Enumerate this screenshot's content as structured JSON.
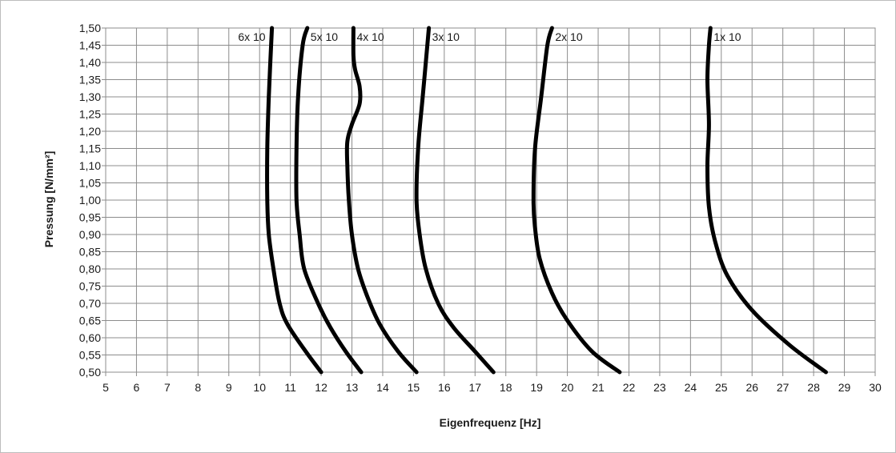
{
  "chart_data": {
    "type": "line",
    "title": "",
    "xlabel": "Eigenfrequenz [Hz]",
    "ylabel": "Pressung [N/mm²]",
    "xlim": [
      5,
      30
    ],
    "ylim": [
      0.5,
      1.5
    ],
    "grid": true,
    "legend": "none",
    "xticks": [
      "5",
      "6",
      "7",
      "8",
      "9",
      "10",
      "11",
      "12",
      "13",
      "14",
      "15",
      "16",
      "17",
      "18",
      "19",
      "20",
      "21",
      "22",
      "23",
      "24",
      "25",
      "26",
      "27",
      "28",
      "29",
      "30"
    ],
    "yticks": [
      "0,50",
      "0,55",
      "0,60",
      "0,65",
      "0,70",
      "0,75",
      "0,80",
      "0,85",
      "0,90",
      "0,95",
      "1,00",
      "1,05",
      "1,10",
      "1,15",
      "1,20",
      "1,25",
      "1,30",
      "1,35",
      "1,40",
      "1,45",
      "1,50"
    ],
    "line_color": "#000000",
    "grid_color": "#8c8c8c",
    "series": [
      {
        "name": "6x 10",
        "points": [
          [
            12.0,
            0.5
          ],
          [
            11.5,
            0.56
          ],
          [
            10.9,
            0.64
          ],
          [
            10.65,
            0.7
          ],
          [
            10.45,
            0.8
          ],
          [
            10.3,
            0.9
          ],
          [
            10.25,
            1.0
          ],
          [
            10.25,
            1.15
          ],
          [
            10.3,
            1.3
          ],
          [
            10.4,
            1.5
          ]
        ]
      },
      {
        "name": "5x 10",
        "points": [
          [
            13.3,
            0.5
          ],
          [
            12.8,
            0.56
          ],
          [
            12.3,
            0.63
          ],
          [
            11.9,
            0.7
          ],
          [
            11.45,
            0.8
          ],
          [
            11.3,
            0.9
          ],
          [
            11.2,
            1.0
          ],
          [
            11.2,
            1.15
          ],
          [
            11.25,
            1.3
          ],
          [
            11.4,
            1.45
          ],
          [
            11.55,
            1.5
          ]
        ]
      },
      {
        "name": "4x 10",
        "points": [
          [
            15.1,
            0.5
          ],
          [
            14.5,
            0.56
          ],
          [
            13.9,
            0.64
          ],
          [
            13.5,
            0.72
          ],
          [
            13.2,
            0.8
          ],
          [
            13.0,
            0.9
          ],
          [
            12.9,
            1.0
          ],
          [
            12.85,
            1.1
          ],
          [
            12.85,
            1.17
          ],
          [
            13.0,
            1.22
          ],
          [
            13.25,
            1.28
          ],
          [
            13.25,
            1.33
          ],
          [
            13.1,
            1.38
          ],
          [
            13.05,
            1.42
          ],
          [
            13.05,
            1.5
          ]
        ]
      },
      {
        "name": "3x 10",
        "points": [
          [
            17.6,
            0.5
          ],
          [
            17.0,
            0.56
          ],
          [
            16.3,
            0.63
          ],
          [
            15.8,
            0.7
          ],
          [
            15.4,
            0.8
          ],
          [
            15.2,
            0.9
          ],
          [
            15.1,
            1.0
          ],
          [
            15.15,
            1.15
          ],
          [
            15.3,
            1.3
          ],
          [
            15.45,
            1.45
          ],
          [
            15.5,
            1.5
          ]
        ]
      },
      {
        "name": "2x 10",
        "points": [
          [
            21.7,
            0.5
          ],
          [
            20.8,
            0.56
          ],
          [
            20.0,
            0.65
          ],
          [
            19.5,
            0.73
          ],
          [
            19.1,
            0.83
          ],
          [
            18.95,
            0.92
          ],
          [
            18.9,
            1.0
          ],
          [
            18.95,
            1.15
          ],
          [
            19.15,
            1.3
          ],
          [
            19.35,
            1.45
          ],
          [
            19.5,
            1.5
          ]
        ]
      },
      {
        "name": "1x 10",
        "points": [
          [
            28.4,
            0.5
          ],
          [
            27.2,
            0.58
          ],
          [
            26.0,
            0.68
          ],
          [
            25.2,
            0.78
          ],
          [
            24.8,
            0.88
          ],
          [
            24.6,
            0.98
          ],
          [
            24.55,
            1.1
          ],
          [
            24.6,
            1.22
          ],
          [
            24.55,
            1.35
          ],
          [
            24.6,
            1.45
          ],
          [
            24.65,
            1.5
          ]
        ]
      }
    ]
  }
}
